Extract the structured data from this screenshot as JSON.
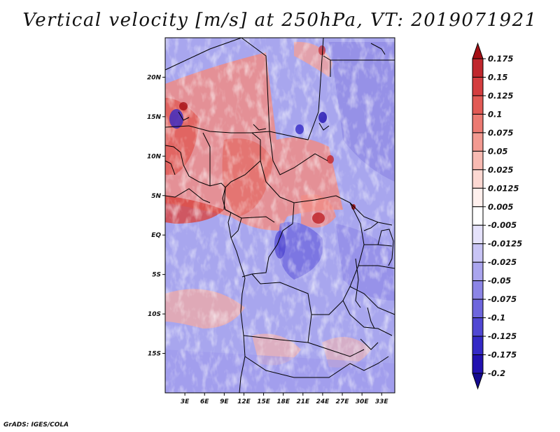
{
  "title": "Vertical velocity [m/s] at 250hPa, VT: 2019071921",
  "credit": "GrADS: IGES/COLA",
  "map": {
    "lon_range": [
      0,
      35
    ],
    "lat_range": [
      -20,
      25
    ],
    "lat_labels": [
      "20N",
      "15N",
      "10N",
      "5N",
      "EQ",
      "5S",
      "10S",
      "15S"
    ],
    "lat_values": [
      20,
      15,
      10,
      5,
      0,
      -5,
      -10,
      -15
    ],
    "lon_labels": [
      "3E",
      "6E",
      "9E",
      "12E",
      "15E",
      "18E",
      "21E",
      "24E",
      "27E",
      "30E",
      "33E"
    ],
    "lon_values": [
      3,
      6,
      9,
      12,
      15,
      18,
      21,
      24,
      27,
      30,
      33
    ]
  },
  "legend": {
    "labels": [
      "0.175",
      "0.15",
      "0.125",
      "0.1",
      "0.075",
      "0.05",
      "0.025",
      "0.0125",
      "0.005",
      "-0.005",
      "-0.0125",
      "-0.025",
      "-0.05",
      "-0.075",
      "-0.1",
      "-0.125",
      "-0.175",
      "-0.2"
    ],
    "colors": [
      "#a50f15",
      "#c0272d",
      "#d43d3f",
      "#e25a55",
      "#ec7a72",
      "#f39a91",
      "#f8bab2",
      "#fcd8d2",
      "#fff0ed",
      "#ffffff",
      "#e5e2fb",
      "#c8c4f5",
      "#aaa5ee",
      "#8c85e6",
      "#6e66dd",
      "#5047d3",
      "#3429c6",
      "#2211b0",
      "#14098f"
    ]
  }
}
